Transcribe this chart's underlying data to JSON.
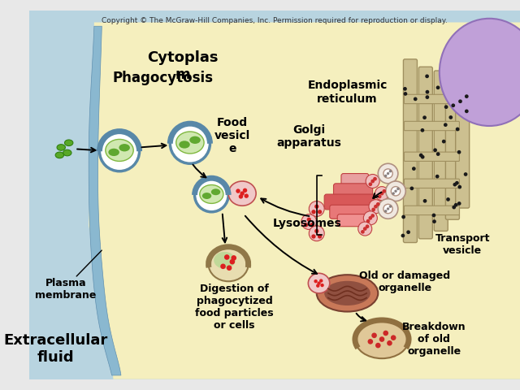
{
  "copyright_text": "Copyright © The McGraw-Hill Companies, Inc. Permission required for reproduction or display.",
  "copyright_fontsize": 6.5,
  "cell_bg": "#f5efbe",
  "extracellular_color": "#b8d4e0",
  "membrane_color": "#88b0c8",
  "labels": {
    "cytoplasm": "Cytoplas\nm",
    "phagocytosis": "Phagocytosis",
    "food_vesicle": "Food\nvesicl\ne",
    "golgi": "Golgi\napparatus",
    "endoplasmic": "Endoplasmic\nreticulum",
    "lysosomes": "Lysosomes",
    "plasma_membrane": "Plasma\nmembrane",
    "extracellular": "Extracellular\nfluid",
    "digestion": "Digestion of\nphagocytized\nfood particles\nor cells",
    "old_damaged": "Old or damaged\norganelle",
    "breakdown": "Breakdown\nof old\norganelle",
    "transport_vesicle": "Transport\nvesicle"
  },
  "label_fontsize": 12,
  "small_fontsize": 10
}
